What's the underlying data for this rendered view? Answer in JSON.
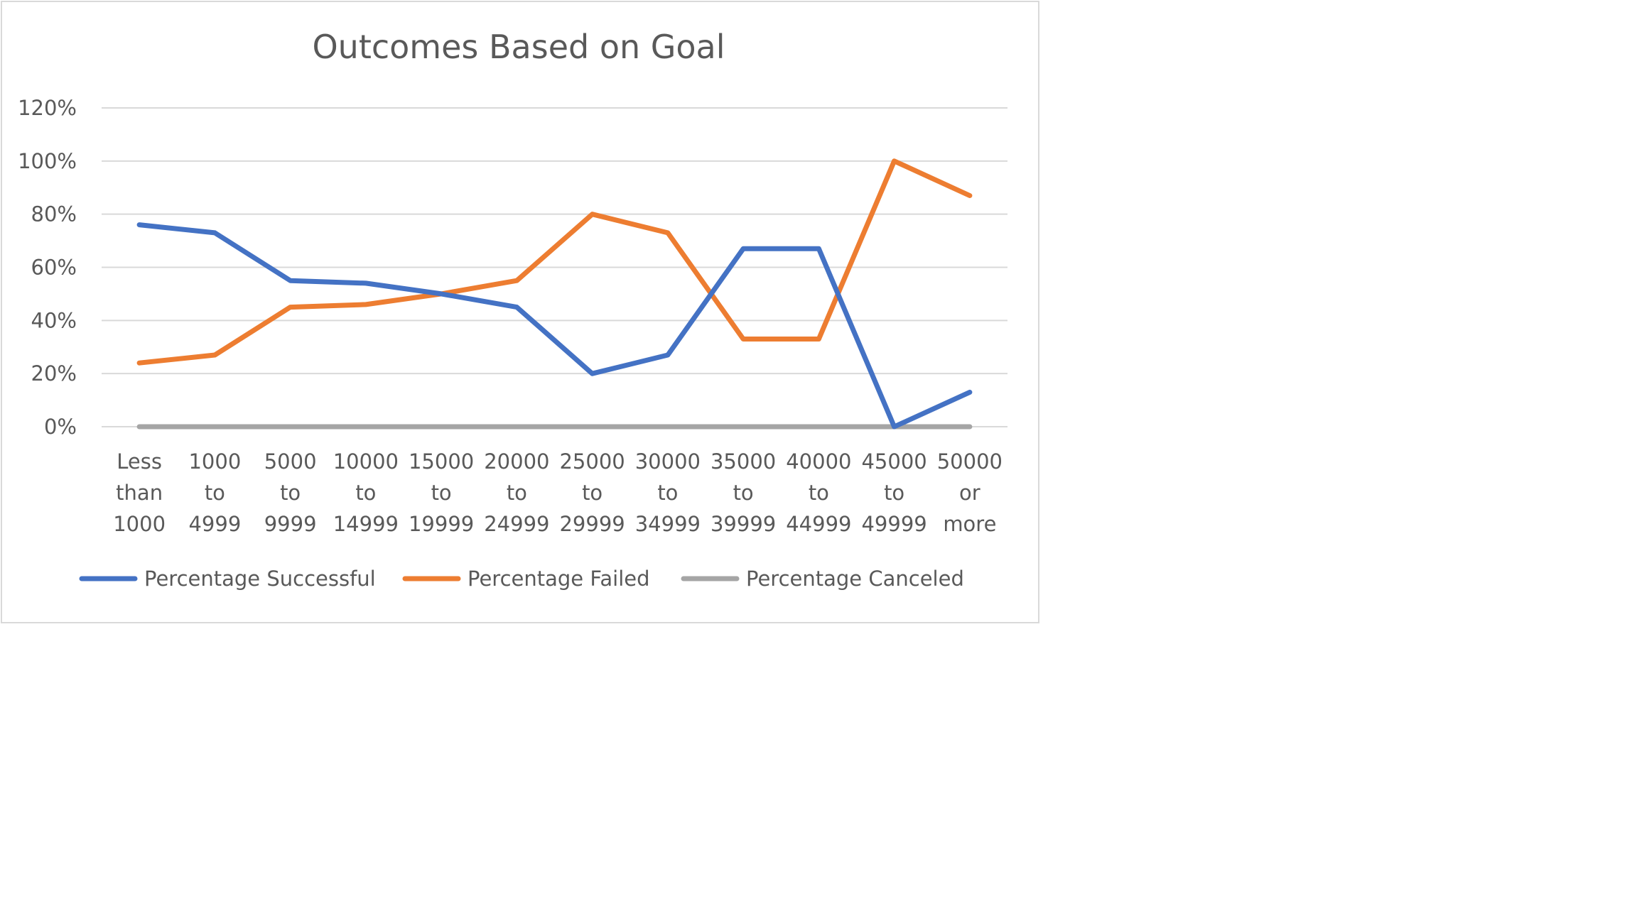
{
  "chart_data": {
    "type": "line",
    "title": "Outcomes Based on Goal",
    "xlabel": "",
    "ylabel": "",
    "categories": [
      [
        "Less",
        "than",
        "1000"
      ],
      [
        "1000",
        "to",
        "4999"
      ],
      [
        "5000",
        "to",
        "9999"
      ],
      [
        "10000",
        "to",
        "14999"
      ],
      [
        "15000",
        "to",
        "19999"
      ],
      [
        "20000",
        "to",
        "24999"
      ],
      [
        "25000",
        "to",
        "29999"
      ],
      [
        "30000",
        "to",
        "34999"
      ],
      [
        "35000",
        "to",
        "39999"
      ],
      [
        "40000",
        "to",
        "44999"
      ],
      [
        "45000",
        "to",
        "49999"
      ],
      [
        "50000",
        "or",
        "more"
      ]
    ],
    "ylim": [
      0,
      120
    ],
    "yticks": [
      0,
      20,
      40,
      60,
      80,
      100,
      120
    ],
    "ytick_labels": [
      "0%",
      "20%",
      "40%",
      "60%",
      "80%",
      "100%",
      "120%"
    ],
    "grid": true,
    "legend_position": "bottom",
    "series": [
      {
        "name": "Percentage Successful",
        "color": "#4472C4",
        "values": [
          76,
          73,
          55,
          54,
          50,
          45,
          20,
          27,
          67,
          67,
          0,
          13
        ]
      },
      {
        "name": "Percentage Failed",
        "color": "#ED7D31",
        "values": [
          24,
          27,
          45,
          46,
          50,
          55,
          80,
          73,
          33,
          33,
          100,
          87
        ]
      },
      {
        "name": "Percentage Canceled",
        "color": "#A5A5A5",
        "values": [
          0,
          0,
          0,
          0,
          0,
          0,
          0,
          0,
          0,
          0,
          0,
          0
        ]
      }
    ]
  }
}
